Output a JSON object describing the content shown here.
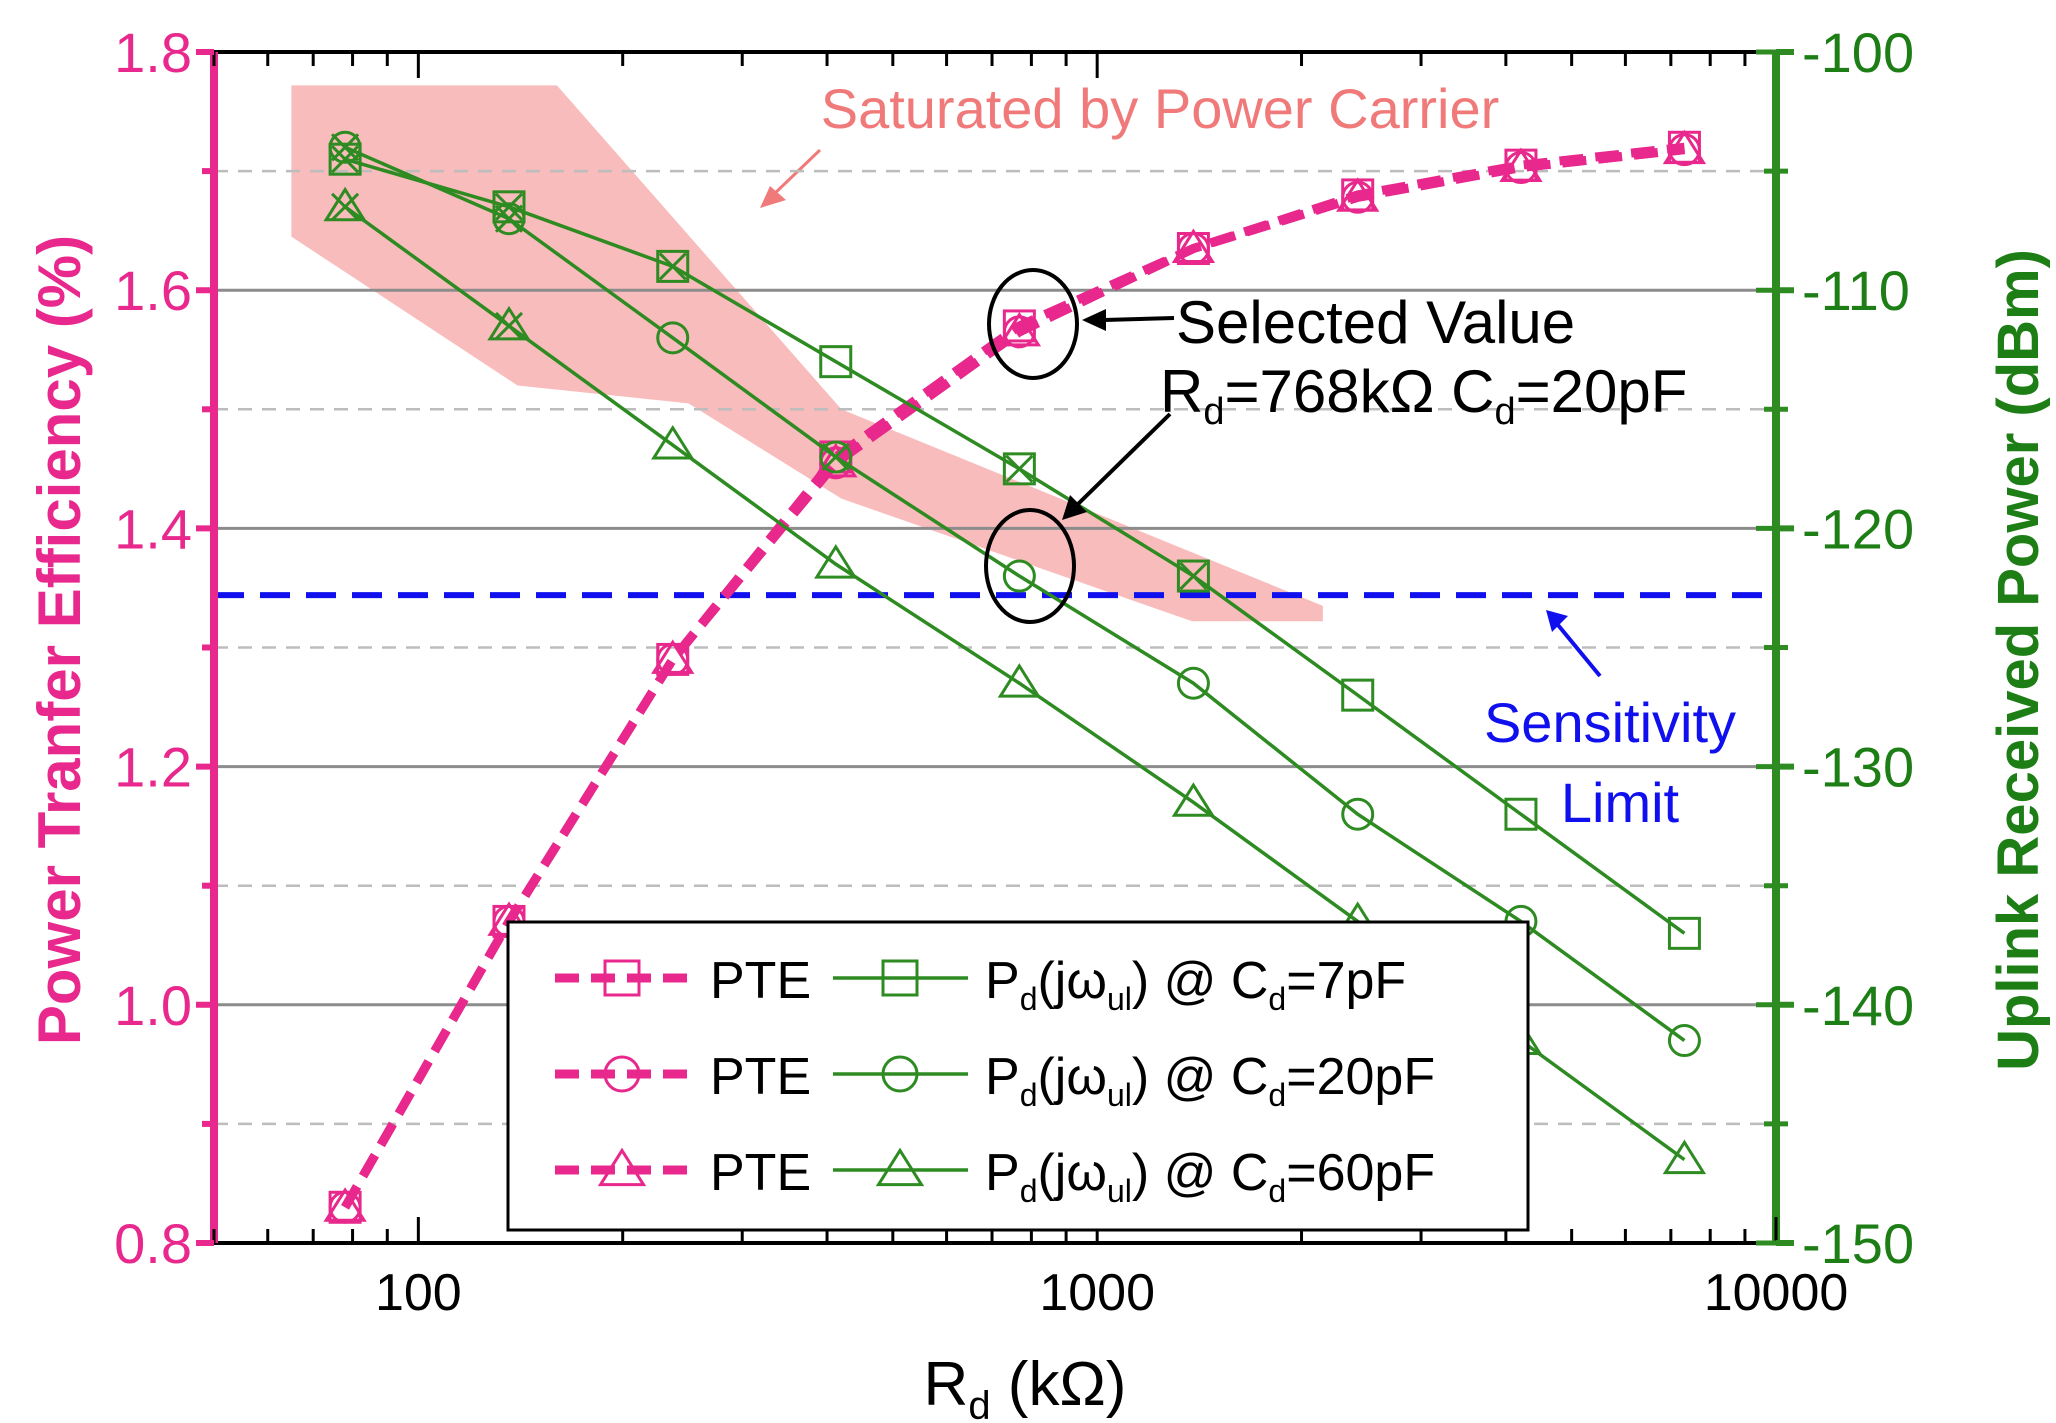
{
  "chart_data": {
    "type": "line",
    "x_scale": "log",
    "xlim": [
      50,
      10000
    ],
    "ylim_left": [
      0.8,
      1.8
    ],
    "ylim_right": [
      -150,
      -100
    ],
    "xlabel_main": "R",
    "xlabel_sub": "d",
    "xlabel_unit": " (kΩ)",
    "ylabel_left": "Power Tranfer Efficiency (%)",
    "ylabel_right": "Uplink Received Power (dBm)",
    "x_ticks": [
      {
        "v": 100,
        "label": "100"
      },
      {
        "v": 1000,
        "label": "1000"
      },
      {
        "v": 10000,
        "label": "10000"
      }
    ],
    "y_left_ticks": [
      {
        "v": 0.8,
        "label": "0.8"
      },
      {
        "v": 1.0,
        "label": "1.0"
      },
      {
        "v": 1.2,
        "label": "1.2"
      },
      {
        "v": 1.4,
        "label": "1.4"
      },
      {
        "v": 1.6,
        "label": "1.6"
      },
      {
        "v": 1.8,
        "label": "1.8"
      }
    ],
    "y_right_ticks": [
      {
        "v": -150,
        "label": "-150"
      },
      {
        "v": -140,
        "label": "-140"
      },
      {
        "v": -130,
        "label": "-130"
      },
      {
        "v": -120,
        "label": "-120"
      },
      {
        "v": -110,
        "label": "-110"
      },
      {
        "v": -100,
        "label": "-100"
      }
    ],
    "x": [
      78,
      136,
      237,
      412,
      768,
      1386,
      2420,
      4210,
      7330
    ],
    "series": [
      {
        "name": "PTE",
        "axis": "left",
        "style": "dashed",
        "marker": "square",
        "color": "#e8288c",
        "values": [
          0.83,
          1.07,
          1.29,
          1.46,
          1.57,
          1.635,
          1.68,
          1.705,
          1.72
        ]
      },
      {
        "name": "PTE",
        "axis": "left",
        "style": "dashed",
        "marker": "circle",
        "color": "#e8288c",
        "values": [
          0.83,
          1.07,
          1.29,
          1.455,
          1.565,
          1.635,
          1.678,
          1.703,
          1.718
        ]
      },
      {
        "name": "PTE",
        "axis": "left",
        "style": "dashed",
        "marker": "triangle",
        "color": "#e8288c",
        "values": [
          0.83,
          1.07,
          1.29,
          1.455,
          1.565,
          1.635,
          1.678,
          1.703,
          1.718
        ]
      },
      {
        "name": "Pd(jωul) @ Cd=7pF",
        "axis": "right",
        "style": "solid",
        "marker": "square",
        "color": "#2e8b22",
        "values": [
          -104.5,
          -106.5,
          -109,
          -113,
          -117.5,
          -122,
          -127,
          -132,
          -137
        ]
      },
      {
        "name": "Pd(jωul) @ Cd=20pF",
        "axis": "right",
        "style": "solid",
        "marker": "circle",
        "color": "#2e8b22",
        "values": [
          -104,
          -107,
          -112,
          -117,
          -122,
          -126.5,
          -132,
          -136.5,
          -141.5
        ]
      },
      {
        "name": "Pd(jωul) @ Cd=60pF",
        "axis": "right",
        "style": "solid",
        "marker": "triangle",
        "color": "#2e8b22",
        "values": [
          -106.5,
          -111.5,
          -116.5,
          -121.5,
          -126.5,
          -131.5,
          -136.5,
          -141.5,
          -146.5
        ]
      }
    ],
    "cross_marker_points": [
      {
        "x": 78,
        "right_values": [
          -104.5,
          -104,
          -106.5
        ]
      },
      {
        "x": 136,
        "right_values": [
          -106.5,
          -107,
          -111.5
        ]
      },
      {
        "x": 412,
        "right_values": [
          -117
        ]
      },
      {
        "x": 768,
        "right_values": [
          -117.5
        ]
      },
      {
        "x": 1386,
        "right_values": [
          -122
        ]
      },
      {
        "x": 237,
        "right_values": [
          -109
        ]
      }
    ],
    "sensitivity_limit_dbm": -122.8,
    "saturation_region_left": {
      "x": [
        65,
        160,
        420,
        2150,
        2150,
        1380,
        420,
        250,
        140,
        65
      ],
      "y": [
        1.772,
        1.772,
        1.5,
        1.335,
        1.322,
        1.322,
        1.425,
        1.505,
        1.52,
        1.645
      ]
    },
    "annotations": {
      "saturated": "Saturated by Power Carrier",
      "selected_line1": "Selected Value",
      "selected_rd_main": "R",
      "selected_rd_sub": "d",
      "selected_rd_val": "=768kΩ C",
      "selected_cd_sub": "d",
      "selected_cd_val": "=20pF",
      "sensitivity_line1": "Sensitivity",
      "sensitivity_line2": "Limit"
    },
    "legend": {
      "rows": [
        {
          "pte_label": "PTE",
          "p_main": "P",
          "p_sub1": "d",
          "p_mid": "(jω",
          "p_sub2": "ul",
          "p_after": ") @ C",
          "p_sub3": "d",
          "p_val": "=7pF",
          "marker": "square"
        },
        {
          "pte_label": "PTE",
          "p_main": "P",
          "p_sub1": "d",
          "p_mid": "(jω",
          "p_sub2": "ul",
          "p_after": ") @ C",
          "p_sub3": "d",
          "p_val": "=20pF",
          "marker": "circle"
        },
        {
          "pte_label": "PTE",
          "p_main": "P",
          "p_sub1": "d",
          "p_mid": "(jω",
          "p_sub2": "ul",
          "p_after": ") @ C",
          "p_sub3": "d",
          "p_val": "=60pF",
          "marker": "triangle"
        }
      ]
    },
    "colors": {
      "pte": "#e8288c",
      "green": "#2e8b22",
      "blue": "#1010ee",
      "shade": "#f9bcbc",
      "shade_text": "#f07a7a"
    }
  }
}
